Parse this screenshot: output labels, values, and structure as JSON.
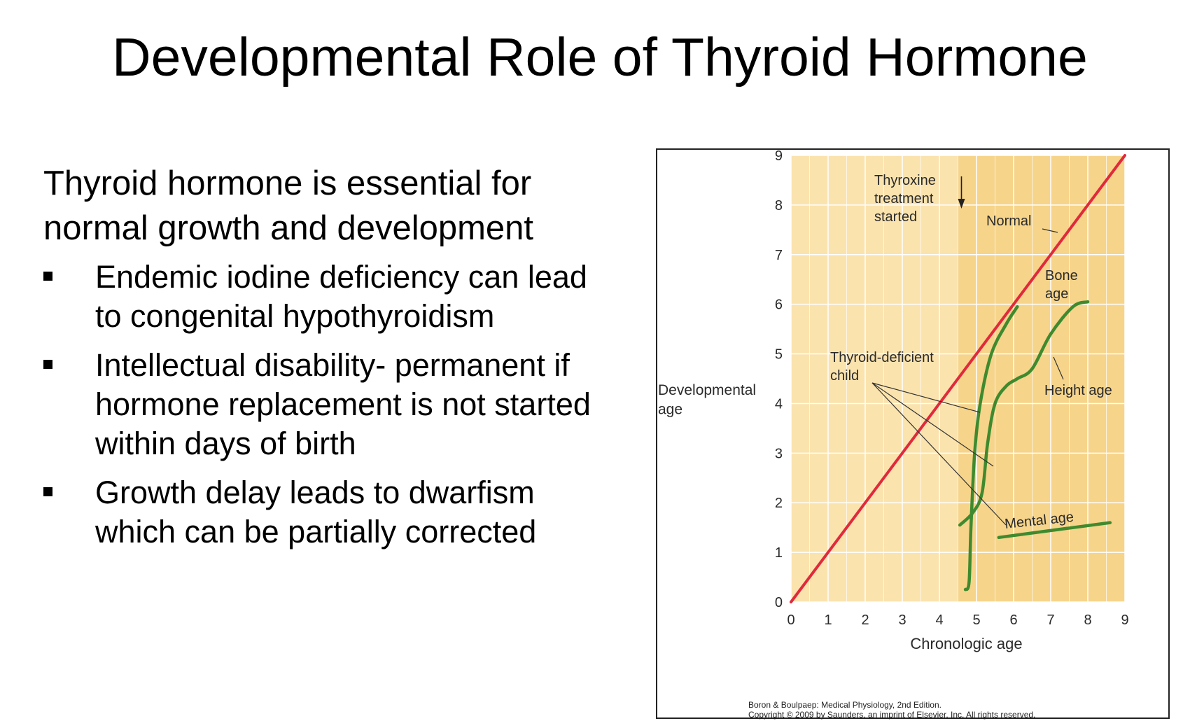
{
  "slide": {
    "title": "Developmental Role of Thyroid Hormone",
    "intro": "Thyroid hormone is essential for normal growth and development",
    "bullets": [
      "Endemic iodine deficiency can lead to congenital hypothyroidism",
      "Intellectual disability- permanent if hormone replacement is not started within days of birth",
      "Growth delay leads to dwarfism which can be partially corrected"
    ]
  },
  "colors": {
    "background_light": "#fbe3ae",
    "background_dark": "#f6d48a",
    "grid": "#ffffff",
    "normal_line": "#e02a3c",
    "curves": "#3f8a2e",
    "text": "#2a2a2a"
  },
  "chart_data": {
    "type": "line",
    "xlabel": "Chronologic age",
    "ylabel": "Developmental age",
    "xlim": [
      0,
      9
    ],
    "ylim": [
      0,
      9
    ],
    "x_ticks": [
      "0",
      "1",
      "2",
      "3",
      "4",
      "5",
      "6",
      "7",
      "8",
      "9"
    ],
    "y_ticks": [
      "0",
      "1",
      "2",
      "3",
      "4",
      "5",
      "6",
      "7",
      "8",
      "9"
    ],
    "grid": true,
    "treatment_start_x": 4.5,
    "series": [
      {
        "name": "Normal",
        "color": "#e02a3c",
        "points": [
          [
            0,
            0
          ],
          [
            9,
            9
          ]
        ]
      },
      {
        "name": "Bone age",
        "color": "#3f8a2e",
        "points": [
          [
            4.7,
            0.25
          ],
          [
            4.8,
            0.4
          ],
          [
            4.85,
            1.5
          ],
          [
            4.95,
            3.0
          ],
          [
            5.1,
            4.0
          ],
          [
            5.4,
            5.0
          ],
          [
            5.8,
            5.6
          ],
          [
            6.1,
            5.95
          ]
        ]
      },
      {
        "name": "Height age",
        "color": "#3f8a2e",
        "points": [
          [
            4.55,
            1.55
          ],
          [
            4.9,
            1.8
          ],
          [
            5.15,
            2.2
          ],
          [
            5.3,
            3.2
          ],
          [
            5.5,
            4.0
          ],
          [
            5.8,
            4.35
          ],
          [
            6.1,
            4.5
          ],
          [
            6.5,
            4.7
          ],
          [
            7.0,
            5.4
          ],
          [
            7.6,
            5.95
          ],
          [
            8.0,
            6.05
          ]
        ]
      },
      {
        "name": "Mental age",
        "color": "#3f8a2e",
        "points": [
          [
            5.6,
            1.3
          ],
          [
            8.6,
            1.6
          ]
        ]
      }
    ],
    "annotations": {
      "treatment": "Thyroxine\ntreatment\nstarted",
      "normal": "Normal",
      "bone_age": "Bone\nage",
      "height_age": "Height age",
      "mental_age": "Mental age",
      "deficient": "Thyroid-deficient\nchild"
    },
    "credit_line1": "Boron & Boulpaep: Medical Physiology, 2nd Edition.",
    "credit_line2": "Copyright © 2009 by Saunders, an imprint of Elsevier, Inc. All rights reserved."
  }
}
